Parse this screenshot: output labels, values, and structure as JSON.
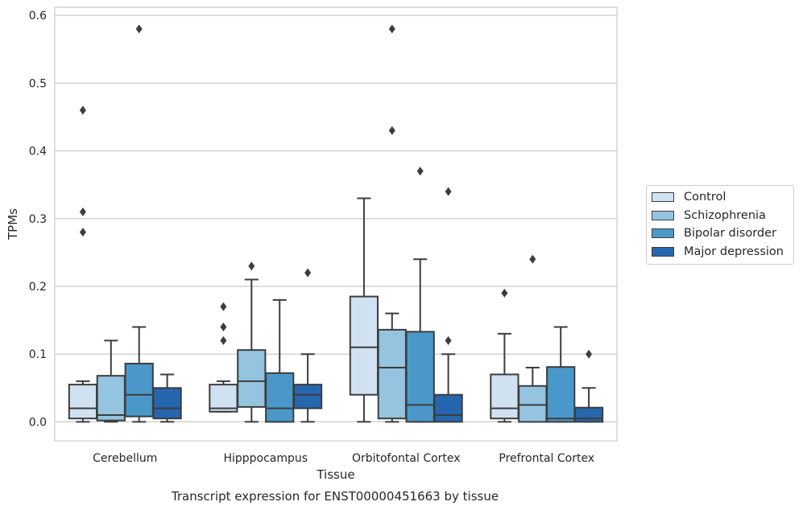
{
  "chart_data": {
    "type": "box",
    "caption": "Transcript expression for ENST00000451663 by tissue",
    "xlabel": "Tissue",
    "ylabel": "TPMs",
    "ylim": [
      -0.028,
      0.612
    ],
    "yticks": [
      0.0,
      0.1,
      0.2,
      0.3,
      0.4,
      0.5,
      0.6
    ],
    "ytick_labels": [
      "0.0",
      "0.1",
      "0.2",
      "0.3",
      "0.4",
      "0.5",
      "0.6"
    ],
    "grid": "horizontal",
    "legend_position": "right",
    "categories": [
      "Cerebellum",
      "Hipppocampus",
      "Orbitofontal Cortex",
      "Prefrontal Cortex"
    ],
    "series": [
      {
        "name": "Control",
        "color": "#d0e1f2",
        "boxes": [
          {
            "whislo": 0.0,
            "q1": 0.005,
            "med": 0.02,
            "q3": 0.055,
            "whishi": 0.06,
            "fliers": [
              0.28,
              0.31,
              0.46
            ]
          },
          {
            "whislo": 0.015,
            "q1": 0.015,
            "med": 0.02,
            "q3": 0.055,
            "whishi": 0.06,
            "fliers": [
              0.12,
              0.14,
              0.17
            ]
          },
          {
            "whislo": 0.0,
            "q1": 0.04,
            "med": 0.11,
            "q3": 0.185,
            "whishi": 0.33,
            "fliers": []
          },
          {
            "whislo": 0.0,
            "q1": 0.005,
            "med": 0.02,
            "q3": 0.07,
            "whishi": 0.13,
            "fliers": [
              0.19
            ]
          }
        ]
      },
      {
        "name": "Schizophrenia",
        "color": "#94c4df",
        "boxes": [
          {
            "whislo": 0.0,
            "q1": 0.002,
            "med": 0.01,
            "q3": 0.068,
            "whishi": 0.12,
            "fliers": []
          },
          {
            "whislo": 0.0,
            "q1": 0.022,
            "med": 0.06,
            "q3": 0.106,
            "whishi": 0.21,
            "fliers": [
              0.23
            ]
          },
          {
            "whislo": 0.0,
            "q1": 0.005,
            "med": 0.08,
            "q3": 0.136,
            "whishi": 0.16,
            "fliers": [
              0.43,
              0.58
            ]
          },
          {
            "whislo": 0.0,
            "q1": 0.0,
            "med": 0.025,
            "q3": 0.053,
            "whishi": 0.08,
            "fliers": [
              0.24
            ]
          }
        ]
      },
      {
        "name": "Bipolar disorder",
        "color": "#4a98c9",
        "boxes": [
          {
            "whislo": 0.0,
            "q1": 0.008,
            "med": 0.04,
            "q3": 0.086,
            "whishi": 0.14,
            "fliers": [
              0.58
            ]
          },
          {
            "whislo": 0.0,
            "q1": 0.0,
            "med": 0.02,
            "q3": 0.072,
            "whishi": 0.18,
            "fliers": []
          },
          {
            "whislo": 0.0,
            "q1": 0.0,
            "med": 0.025,
            "q3": 0.133,
            "whishi": 0.24,
            "fliers": [
              0.37
            ]
          },
          {
            "whislo": 0.0,
            "q1": 0.0,
            "med": 0.005,
            "q3": 0.081,
            "whishi": 0.14,
            "fliers": []
          }
        ]
      },
      {
        "name": "Major depression",
        "color": "#2666ae",
        "boxes": [
          {
            "whislo": 0.0,
            "q1": 0.005,
            "med": 0.02,
            "q3": 0.05,
            "whishi": 0.07,
            "fliers": []
          },
          {
            "whislo": 0.0,
            "q1": 0.02,
            "med": 0.04,
            "q3": 0.055,
            "whishi": 0.1,
            "fliers": [
              0.22
            ]
          },
          {
            "whislo": 0.0,
            "q1": 0.0,
            "med": 0.01,
            "q3": 0.04,
            "whishi": 0.1,
            "fliers": [
              0.12,
              0.34
            ]
          },
          {
            "whislo": 0.0,
            "q1": 0.0,
            "med": 0.005,
            "q3": 0.021,
            "whishi": 0.05,
            "fliers": [
              0.1
            ]
          }
        ]
      }
    ]
  }
}
